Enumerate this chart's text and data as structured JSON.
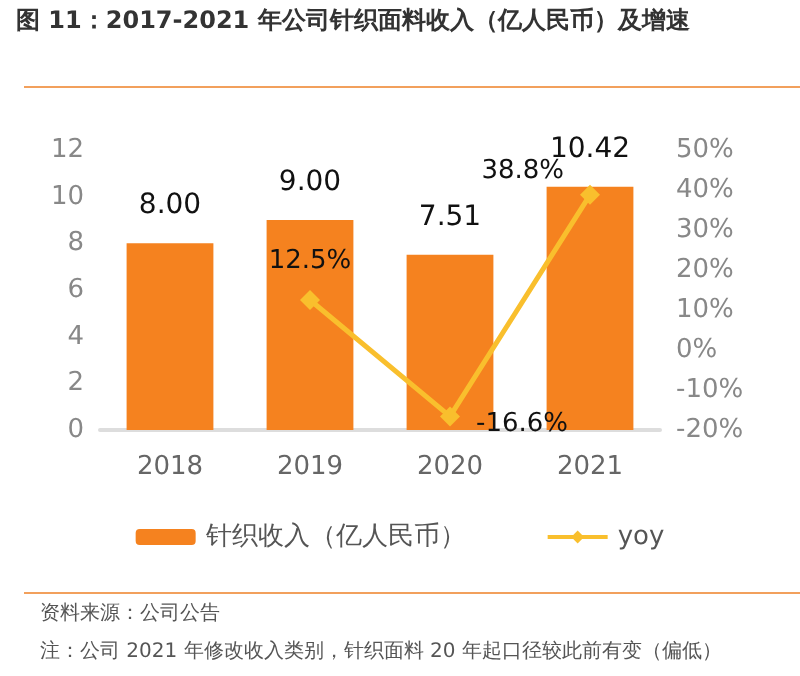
{
  "chart_data": {
    "type": "bar",
    "title": "图 11：2017-2021 年公司针织面料收入（亿人民币）及增速",
    "categories": [
      "2018",
      "2019",
      "2020",
      "2021"
    ],
    "series": [
      {
        "name": "针织收入（亿人民币）",
        "color": "#f5821f",
        "values": [
          8.0,
          9.0,
          7.51,
          10.42
        ],
        "value_labels": [
          "8.00",
          "9.00",
          "7.51",
          "10.42"
        ]
      },
      {
        "name": "yoy",
        "type": "line",
        "axis": "y2",
        "color": "#f9bf2d",
        "marker": "diamond",
        "values": [
          null,
          12.5,
          -16.6,
          38.8
        ],
        "value_labels": [
          null,
          "12.5%",
          "-16.6%",
          "38.8%"
        ]
      }
    ],
    "ylim": [
      0,
      12
    ],
    "yticks": [
      0,
      2,
      4,
      6,
      8,
      10,
      12
    ],
    "y2lim": [
      -20,
      50
    ],
    "y2ticks": [
      {
        "value": -20,
        "label": "-20%"
      },
      {
        "value": -10,
        "label": "-10%"
      },
      {
        "value": 0,
        "label": "0%"
      },
      {
        "value": 10,
        "label": "10%"
      },
      {
        "value": 20,
        "label": "20%"
      },
      {
        "value": 30,
        "label": "30%"
      },
      {
        "value": 40,
        "label": "40%"
      },
      {
        "value": 50,
        "label": "50%"
      }
    ],
    "legend": "bottom",
    "grid": false,
    "annotations": [
      "资料来源：公司公告",
      "注：公司 2021 年修改收入类别，针织面料 20 年起口径较此前有变（偏低）"
    ]
  }
}
